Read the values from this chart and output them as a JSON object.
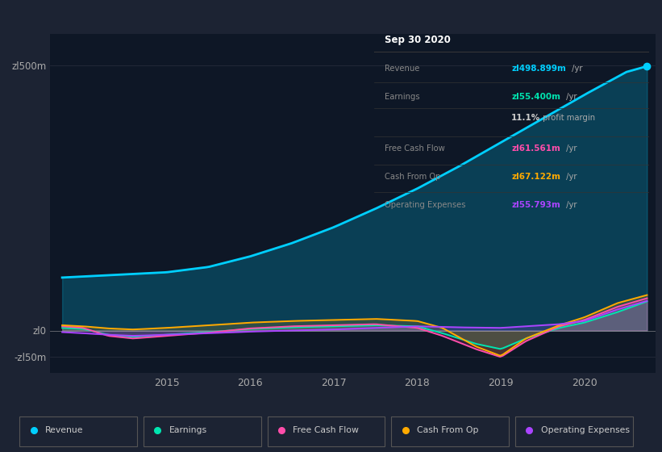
{
  "bg_color": "#1c2333",
  "plot_bg_color": "#0e1726",
  "ylim": [
    -80,
    560
  ],
  "x_lim": [
    2013.6,
    2020.85
  ],
  "revenue_color": "#00cfff",
  "earnings_color": "#00e5b0",
  "free_cash_flow_color": "#ff4daa",
  "cash_from_op_color": "#ffaa00",
  "operating_expenses_color": "#aa44ff",
  "legend": [
    {
      "label": "Revenue",
      "color": "#00cfff"
    },
    {
      "label": "Earnings",
      "color": "#00e5b0"
    },
    {
      "label": "Free Cash Flow",
      "color": "#ff4daa"
    },
    {
      "label": "Cash From Op",
      "color": "#ffaa00"
    },
    {
      "label": "Operating Expenses",
      "color": "#aa44ff"
    }
  ]
}
